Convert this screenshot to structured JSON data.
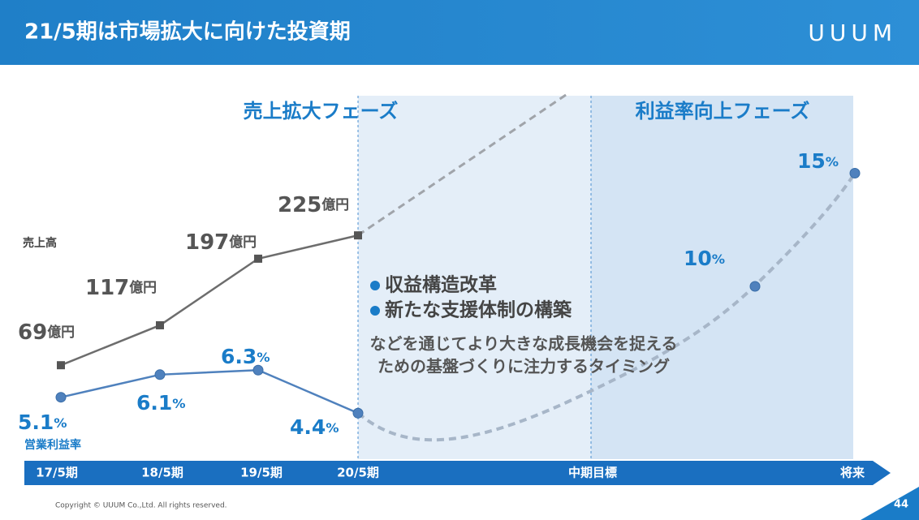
{
  "chart_data": {
    "type": "line",
    "title": "21/5期は市場拡大に向けた投資期",
    "brand": "UUUM",
    "phases": [
      "売上拡大フェーズ",
      "利益率向上フェーズ"
    ],
    "bullets": [
      "収益構造改革",
      "新たな支援体制の構築"
    ],
    "note": [
      "などを通じてより大きな成長機会を捉える",
      "ための基盤づくりに注力するタイミング"
    ],
    "categories": [
      "17/5期",
      "18/5期",
      "19/5期",
      "20/5期",
      "中期目標",
      "将来"
    ],
    "series": [
      {
        "name": "売上高",
        "color": "#6d6d6d",
        "unit": "億円",
        "values": [
          69,
          117,
          197,
          225,
          null,
          null
        ]
      },
      {
        "name": "営業利益率",
        "color": "#4f81bd",
        "unit": "%",
        "values": [
          5.1,
          6.1,
          6.3,
          4.4,
          null,
          null
        ],
        "projection": [
          10,
          15
        ]
      }
    ],
    "page": "44",
    "copyright": "Copyright © UUUM Co.,Ltd. All rights reserved."
  }
}
